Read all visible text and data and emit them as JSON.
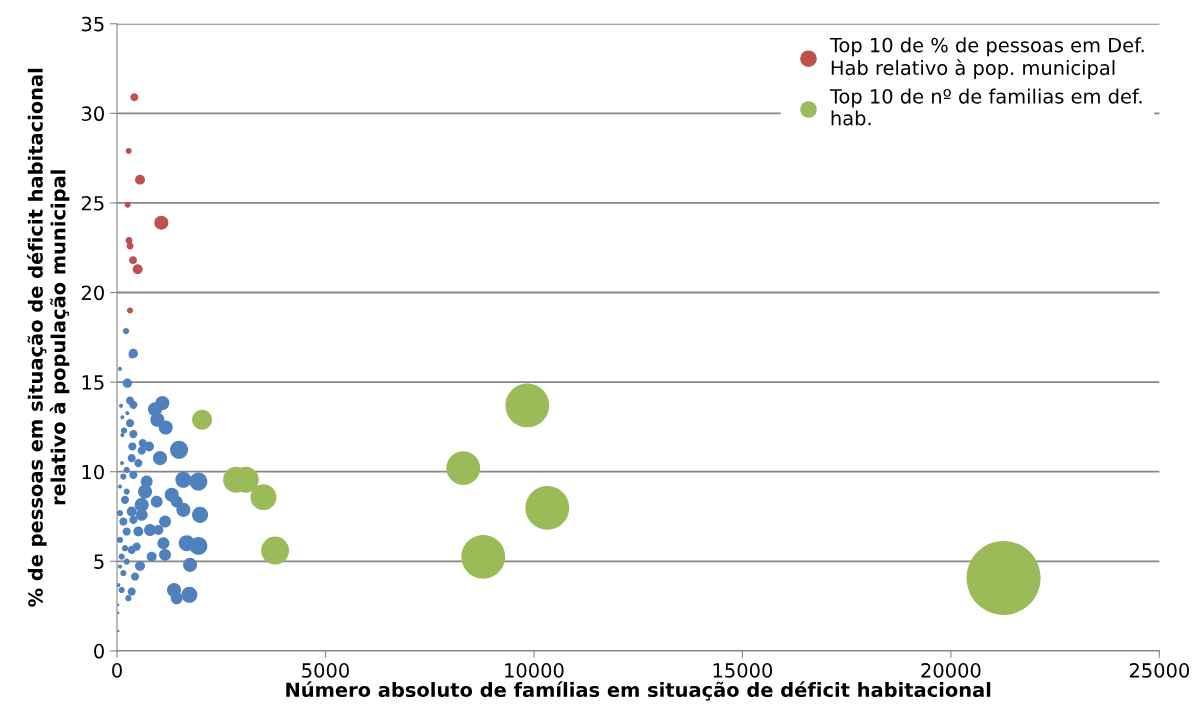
{
  "chart_data": {
    "type": "bubble",
    "xlabel": "Número absoluto de famílias em situação de déficit habitacional",
    "ylabel": "% de pessoas em situação de déficit habitacional\nrelativo à população municipal",
    "xlim": [
      0,
      25000
    ],
    "xticks": [
      0,
      5000,
      10000,
      15000,
      20000,
      25000
    ],
    "ylim": [
      0,
      35
    ],
    "yticks": [
      0,
      5,
      10,
      15,
      20,
      25,
      30,
      35
    ],
    "grid": "y",
    "legend": "top right",
    "series": [
      {
        "color": "#4f81bd",
        "x": [
          216,
          392,
          352,
          72,
          248,
          312,
          392,
          96,
          1088,
          912,
          968,
          1168,
          128,
          248,
          312,
          168,
          128,
          392,
          368,
          616,
          768,
          592,
          1488,
          352,
          512,
          1032,
          120,
          232,
          152,
          392,
          712,
          1592,
          1952,
          72,
          232,
          672,
          1312,
          952,
          192,
          592,
          1432,
          1592,
          1992,
          72,
          352,
          592,
          152,
          392,
          1152,
          792,
          232,
          512,
          992,
          72,
          1112,
          1672,
          1952,
          472,
          192,
          1152,
          832,
          352,
          112,
          1752,
          552,
          232,
          72,
          432,
          152,
          32,
          352,
          112,
          272,
          1368,
          1432,
          1736,
          30,
          30,
          30
        ],
        "values": [
          17.85,
          16.6,
          16.5,
          15.74,
          14.94,
          13.97,
          13.73,
          13.68,
          13.83,
          13.49,
          12.9,
          12.47,
          13.04,
          13.27,
          12.71,
          12.3,
          12.04,
          12.1,
          11.41,
          11.6,
          11.41,
          11.18,
          11.22,
          10.76,
          10.48,
          10.76,
          10.48,
          10.1,
          9.73,
          9.82,
          9.45,
          9.55,
          9.45,
          9.17,
          8.89,
          8.89,
          8.71,
          8.33,
          8.43,
          8.15,
          8.33,
          7.87,
          7.59,
          7.69,
          7.78,
          7.59,
          7.22,
          7.31,
          7.22,
          6.75,
          6.66,
          6.66,
          6.75,
          6.2,
          6.01,
          6.01,
          5.86,
          5.82,
          5.73,
          5.36,
          5.26,
          5.64,
          5.26,
          4.8,
          4.74,
          4.98,
          4.71,
          4.15,
          4.34,
          3.68,
          3.31,
          3.4,
          2.94,
          3.4,
          2.94,
          3.13,
          2.57,
          2.12,
          1.1
        ],
        "sizes": [
          0.007,
          0.016,
          0.007,
          0.003,
          0.016,
          0.012,
          0.012,
          0.003,
          0.036,
          0.036,
          0.036,
          0.036,
          0.003,
          0.003,
          0.012,
          0.007,
          0.003,
          0.012,
          0.012,
          0.012,
          0.018,
          0.012,
          0.059,
          0.012,
          0.012,
          0.036,
          0.003,
          0.007,
          0.007,
          0.012,
          0.026,
          0.047,
          0.059,
          0.003,
          0.007,
          0.036,
          0.036,
          0.026,
          0.012,
          0.036,
          0.026,
          0.036,
          0.047,
          0.007,
          0.018,
          0.026,
          0.012,
          0.012,
          0.026,
          0.026,
          0.012,
          0.018,
          0.018,
          0.007,
          0.026,
          0.047,
          0.059,
          0.012,
          0.007,
          0.026,
          0.018,
          0.012,
          0.007,
          0.036,
          0.018,
          0.007,
          0.003,
          0.012,
          0.007,
          0.003,
          0.012,
          0.007,
          0.007,
          0.036,
          0.026,
          0.047,
          0.001,
          0.001,
          0.001
        ]
      },
      {
        "name": "Top 10 de % de pessoas em Def.\nHab relativo à pop. municipal",
        "color": "#c0504d",
        "x": [
          415,
          280,
          552,
          256,
          1063,
          288,
          312,
          384,
          496,
          312
        ],
        "values": [
          30.9,
          27.9,
          26.3,
          24.9,
          23.9,
          22.9,
          22.6,
          21.8,
          21.3,
          19.0
        ],
        "sizes": [
          0.0117,
          0.0066,
          0.018,
          0.0066,
          0.036,
          0.009,
          0.009,
          0.0117,
          0.018,
          0.0066
        ]
      },
      {
        "name": "Top 10 de nº de familias em def.\nhab.",
        "color": "#9bbb59",
        "x": [
          2040,
          2856,
          3089,
          3512,
          3792,
          8304,
          8784,
          9840,
          10320,
          21264
        ],
        "values": [
          12.9,
          9.55,
          9.55,
          8.58,
          5.6,
          10.2,
          5.25,
          13.7,
          7.98,
          4.07
        ],
        "sizes": [
          0.073,
          0.123,
          0.123,
          0.123,
          0.143,
          0.21,
          0.35,
          0.35,
          0.35,
          1
        ]
      }
    ]
  }
}
